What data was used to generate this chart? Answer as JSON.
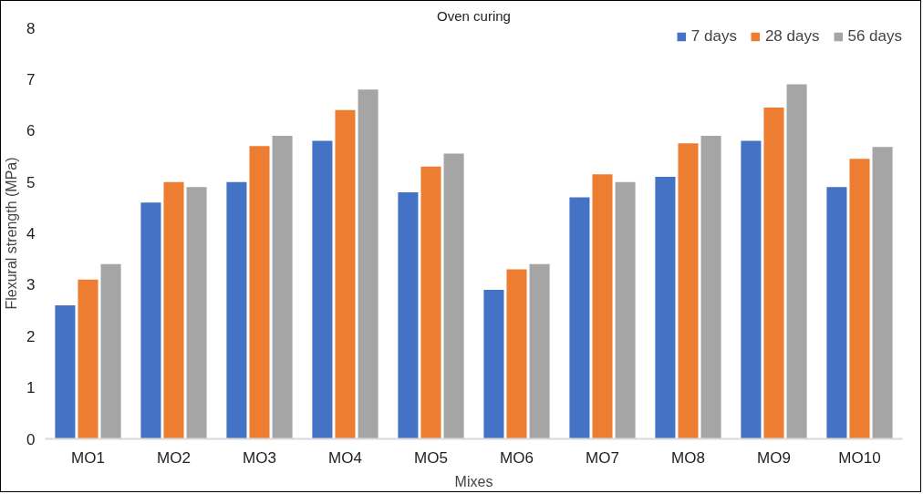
{
  "chart_data": {
    "type": "bar",
    "title": "Oven curing",
    "xlabel": "Mixes",
    "ylabel": "Flexural strength (MPa)",
    "categories": [
      "MO1",
      "MO2",
      "MO3",
      "MO4",
      "MO5",
      "MO6",
      "MO7",
      "MO8",
      "MO9",
      "MO10"
    ],
    "series": [
      {
        "name": "7 days",
        "color": "#4472c4",
        "values": [
          2.6,
          4.6,
          5.0,
          5.8,
          4.8,
          2.9,
          4.7,
          5.1,
          5.8,
          4.9
        ]
      },
      {
        "name": "28 days",
        "color": "#ed7d31",
        "values": [
          3.1,
          5.0,
          5.7,
          6.4,
          5.3,
          3.3,
          5.15,
          5.75,
          6.45,
          5.45
        ]
      },
      {
        "name": "56 days",
        "color": "#a5a5a5",
        "values": [
          3.4,
          4.9,
          5.9,
          6.8,
          5.55,
          3.4,
          5.0,
          5.9,
          6.9,
          5.68
        ]
      }
    ],
    "ylim": [
      0,
      8
    ],
    "yticks": [
      0,
      1,
      2,
      3,
      4,
      5,
      6,
      7,
      8
    ],
    "grid": false,
    "legend": "top right"
  }
}
